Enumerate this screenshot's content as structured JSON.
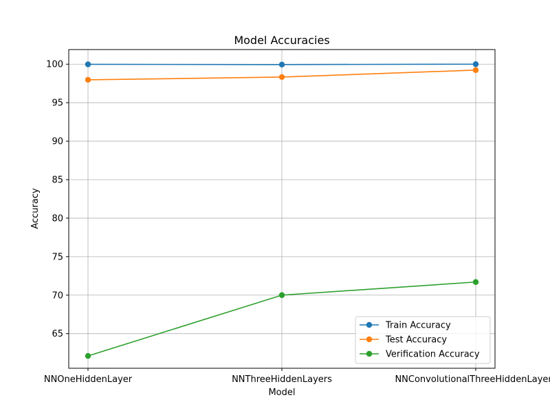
{
  "chart_data": {
    "type": "line",
    "title": "Model Accuracies",
    "xlabel": "Model",
    "ylabel": "Accuracy",
    "categories": [
      "NNOneHiddenLayer",
      "NNThreeHiddenLayers",
      "NNConvolutionalThreeHiddenLayers"
    ],
    "ylim": [
      60.5,
      101.9
    ],
    "yticks": [
      65,
      70,
      75,
      80,
      85,
      90,
      95,
      100
    ],
    "grid": true,
    "legend_position": "lower-right",
    "series": [
      {
        "name": "Train Accuracy",
        "color": "#1f77b4",
        "values": [
          99.98,
          99.95,
          100.0
        ]
      },
      {
        "name": "Test Accuracy",
        "color": "#ff7f0e",
        "values": [
          97.97,
          98.33,
          99.23
        ]
      },
      {
        "name": "Verification Accuracy",
        "color": "#2ca02c",
        "values": [
          62.1,
          70.0,
          71.7
        ]
      }
    ]
  }
}
